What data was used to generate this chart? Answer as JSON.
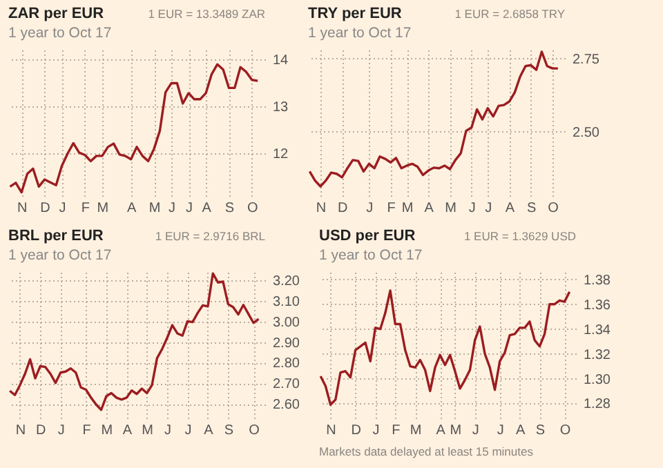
{
  "chart_data": [
    {
      "type": "line",
      "title": "ZAR per EUR",
      "subtitle": "1 year to Oct 17",
      "annotations": [
        "1 EUR = 13.3489 ZAR"
      ],
      "grid": true,
      "ylim": [
        11.1,
        14.2
      ],
      "yticks": [
        12,
        13,
        14
      ],
      "categories": [
        null,
        null,
        "N",
        null,
        null,
        null,
        "D",
        null,
        null,
        "J",
        null,
        null,
        null,
        "F",
        null,
        null,
        "M",
        null,
        null,
        null,
        null,
        "A",
        null,
        null,
        null,
        "M",
        null,
        null,
        "J",
        null,
        null,
        "J",
        null,
        null,
        "A",
        null,
        null,
        null,
        "S",
        null,
        null,
        null,
        "O",
        null
      ],
      "series": [
        {
          "color": "#9b1d20",
          "values": [
            11.3,
            11.38,
            11.18,
            11.57,
            11.68,
            11.3,
            11.45,
            11.39,
            11.33,
            11.74,
            12.0,
            12.22,
            12.02,
            11.97,
            11.84,
            11.95,
            11.95,
            12.14,
            12.21,
            11.98,
            11.95,
            11.88,
            12.14,
            11.95,
            11.84,
            12.1,
            12.48,
            13.3,
            13.49,
            13.49,
            13.06,
            13.28,
            13.15,
            13.15,
            13.28,
            13.68,
            13.89,
            13.78,
            13.39,
            13.39,
            13.83,
            13.73,
            13.56,
            13.54
          ]
        }
      ]
    },
    {
      "type": "line",
      "title": "TRY per EUR",
      "subtitle": "1 year to Oct 17",
      "annotations": [
        "1 EUR = 2.6858 TRY"
      ],
      "grid": true,
      "ylim": [
        2.28,
        2.78
      ],
      "yticks": [
        {
          "value": 2.5,
          "label": "2.50"
        },
        2.75
      ],
      "categories": [
        null,
        null,
        "N",
        null,
        null,
        null,
        "D",
        null,
        null,
        null,
        null,
        "J",
        null,
        null,
        null,
        "F",
        null,
        null,
        "M",
        null,
        null,
        null,
        "A",
        null,
        null,
        null,
        "M",
        null,
        null,
        null,
        "J",
        null,
        null,
        "J",
        null,
        null,
        null,
        "A",
        null,
        null,
        null,
        "S",
        null,
        null,
        null,
        "O",
        null
      ],
      "series": [
        {
          "color": "#9b1d20",
          "values": [
            2.364,
            2.333,
            2.313,
            2.333,
            2.36,
            2.356,
            2.344,
            2.375,
            2.403,
            2.4,
            2.364,
            2.39,
            2.375,
            2.415,
            2.407,
            2.395,
            2.41,
            2.375,
            2.384,
            2.39,
            2.38,
            2.352,
            2.367,
            2.377,
            2.375,
            2.384,
            2.372,
            2.403,
            2.426,
            2.503,
            2.514,
            2.576,
            2.542,
            2.58,
            2.552,
            2.588,
            2.591,
            2.603,
            2.634,
            2.688,
            2.724,
            2.727,
            2.711,
            2.773,
            2.724,
            2.716,
            2.716
          ]
        }
      ]
    },
    {
      "type": "line",
      "title": "BRL per EUR",
      "subtitle": "1 year to Oct 17",
      "annotations": [
        "1 EUR = 2.9716 BRL"
      ],
      "grid": true,
      "ylim": [
        2.53,
        3.24
      ],
      "yticks": [
        {
          "value": 2.6,
          "label": "2.60"
        },
        {
          "value": 2.7,
          "label": "2.70"
        },
        {
          "value": 2.8,
          "label": "2.80"
        },
        {
          "value": 2.9,
          "label": "2.90"
        },
        {
          "value": 3.0,
          "label": "3.00"
        },
        {
          "value": 3.1,
          "label": "3.10"
        },
        {
          "value": 3.2,
          "label": "3.20"
        }
      ],
      "categories": [
        null,
        null,
        "N",
        null,
        null,
        null,
        "D",
        null,
        null,
        null,
        "J",
        null,
        null,
        null,
        null,
        "F",
        null,
        null,
        null,
        "M",
        null,
        null,
        null,
        "A",
        null,
        null,
        null,
        "M",
        null,
        null,
        null,
        "J",
        null,
        null,
        null,
        "J",
        null,
        null,
        null,
        "A",
        null,
        null,
        null,
        "S",
        null,
        null,
        null,
        null,
        "O",
        null
      ],
      "series": [
        {
          "color": "#9b1d20",
          "values": [
            2.663,
            2.643,
            2.691,
            2.746,
            2.816,
            2.724,
            2.783,
            2.779,
            2.746,
            2.702,
            2.752,
            2.757,
            2.772,
            2.752,
            2.68,
            2.669,
            2.63,
            2.597,
            2.571,
            2.637,
            2.652,
            2.63,
            2.621,
            2.63,
            2.665,
            2.648,
            2.674,
            2.652,
            2.691,
            2.822,
            2.866,
            2.921,
            2.982,
            2.942,
            2.931,
            3.001,
            2.997,
            3.041,
            3.078,
            3.073,
            3.233,
            3.189,
            3.193,
            3.084,
            3.069,
            3.034,
            3.08,
            3.036,
            2.993,
            3.012
          ]
        }
      ]
    },
    {
      "type": "line",
      "title": "USD per EUR",
      "subtitle": "1 year to Oct 17",
      "annotations": [
        "1 EUR = 1.3629 USD",
        "Markets data delayed at least 15 minutes"
      ],
      "grid": true,
      "ylim": [
        1.268,
        1.386
      ],
      "yticks": [
        {
          "value": 1.28,
          "label": "1.28"
        },
        {
          "value": 1.3,
          "label": "1.30"
        },
        {
          "value": 1.32,
          "label": "1.32"
        },
        {
          "value": 1.34,
          "label": "1.34"
        },
        {
          "value": 1.36,
          "label": "1.36"
        },
        {
          "value": 1.38,
          "label": "1.38"
        }
      ],
      "categories": [
        null,
        null,
        "N",
        null,
        null,
        null,
        null,
        "D",
        null,
        null,
        null,
        "J",
        null,
        null,
        null,
        "F",
        null,
        null,
        null,
        "M",
        null,
        null,
        null,
        null,
        "A",
        null,
        null,
        "M",
        null,
        null,
        null,
        "J",
        null,
        null,
        null,
        null,
        "J",
        null,
        null,
        null,
        "A",
        null,
        null,
        null,
        "S",
        null,
        null,
        null,
        null,
        "O",
        null
      ],
      "series": [
        {
          "color": "#9b1d20",
          "values": [
            1.302,
            1.294,
            1.279,
            1.283,
            1.305,
            1.306,
            1.301,
            1.323,
            1.326,
            1.329,
            1.314,
            1.341,
            1.34,
            1.353,
            1.371,
            1.344,
            1.344,
            1.323,
            1.31,
            1.309,
            1.315,
            1.307,
            1.29,
            1.309,
            1.319,
            1.311,
            1.319,
            1.306,
            1.292,
            1.299,
            1.307,
            1.331,
            1.342,
            1.32,
            1.309,
            1.291,
            1.314,
            1.321,
            1.335,
            1.336,
            1.341,
            1.341,
            1.346,
            1.331,
            1.326,
            1.336,
            1.36,
            1.36,
            1.363,
            1.362,
            1.37
          ]
        }
      ]
    }
  ]
}
